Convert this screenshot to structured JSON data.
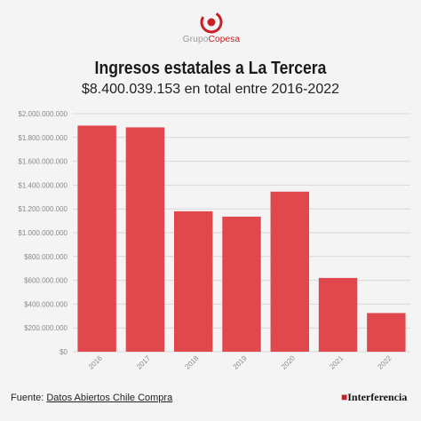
{
  "logo": {
    "text_a": "Grupo",
    "text_b": "Copesa"
  },
  "chart_data": {
    "type": "bar",
    "title": "Ingresos estatales a La Tercera",
    "subtitle": "$8.400.039.153 en total entre 2016-2022",
    "categories": [
      "2016",
      "2017",
      "2018",
      "2019",
      "2020",
      "2021",
      "2022"
    ],
    "values": [
      1900000000,
      1885000000,
      1180000000,
      1135000000,
      1345000000,
      620000000,
      325000000
    ],
    "ylim": [
      0,
      2000000000
    ],
    "yticks": [
      "$0",
      "$200.000.000",
      "$400.000.000",
      "$600.000.000",
      "$800.000.000",
      "$1.000.000.000",
      "$1.200.000.000",
      "$1.400.000.000",
      "$1.600.000.000",
      "$1.800.000.000",
      "$2.000.000.000"
    ],
    "bar_color": "#e0484e",
    "grid": true,
    "xlabel": "",
    "ylabel": ""
  },
  "footer": {
    "source_prefix": "Fuente: ",
    "source_link": "Datos Abiertos Chile Compra",
    "brand": "Interferencia"
  }
}
